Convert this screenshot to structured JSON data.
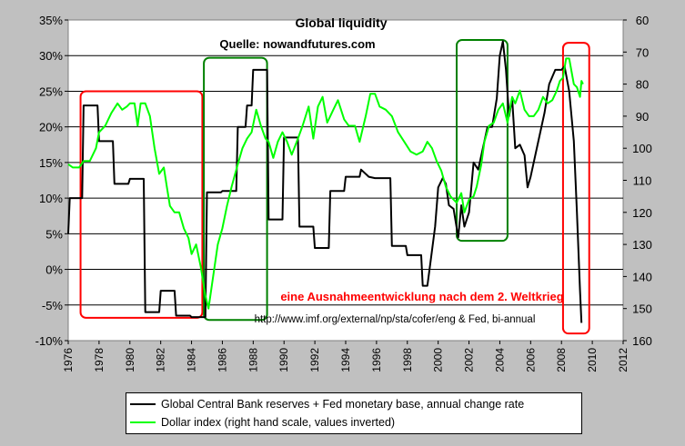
{
  "chart_data": {
    "type": "line",
    "title": "Global liquidity",
    "source": "Quelle: nowandfutures.com",
    "annotation": "eine Ausnahmeentwicklung nach dem 2. Weltkrieg",
    "url_note": "http://www.imf.org/external/np/sta/cofer/eng & Fed, bi-annual",
    "x_ticks": [
      "1976",
      "1978",
      "1980",
      "1982",
      "1984",
      "1986",
      "1988",
      "1990",
      "1992",
      "1994",
      "1996",
      "1998",
      "2000",
      "2002",
      "2004",
      "2006",
      "2008",
      "2010",
      "2012"
    ],
    "xlim": [
      1976,
      2012
    ],
    "left_axis": {
      "ticks": [
        "35%",
        "30%",
        "25%",
        "20%",
        "15%",
        "10%",
        "5%",
        "0%",
        "-5%",
        "-10%"
      ],
      "ylim": [
        -10,
        35
      ]
    },
    "right_axis": {
      "ticks": [
        "60",
        "70",
        "80",
        "90",
        "100",
        "110",
        "120",
        "130",
        "140",
        "150",
        "160"
      ],
      "ylim": [
        60,
        160
      ],
      "inverted": true
    },
    "series": [
      {
        "name": "Global Central Bank reserves + Fed monetary base, annual change rate",
        "color": "#000000",
        "axis": "left",
        "points": [
          [
            1976,
            5
          ],
          [
            1976.1,
            10
          ],
          [
            1976.9,
            10
          ],
          [
            1977,
            23
          ],
          [
            1977.9,
            23
          ],
          [
            1978,
            18
          ],
          [
            1978.9,
            18
          ],
          [
            1979,
            12
          ],
          [
            1979.9,
            12
          ],
          [
            1980,
            12.7
          ],
          [
            1980.9,
            12.7
          ],
          [
            1981,
            -6
          ],
          [
            1981.9,
            -6
          ],
          [
            1982,
            -3
          ],
          [
            1982.9,
            -3
          ],
          [
            1983,
            -6.5
          ],
          [
            1983.9,
            -6.5
          ],
          [
            1984,
            -6.7
          ],
          [
            1984.9,
            -6.7
          ],
          [
            1985,
            10.8
          ],
          [
            1985.9,
            10.8
          ],
          [
            1986,
            11
          ],
          [
            1986.9,
            11
          ],
          [
            1987,
            20
          ],
          [
            1987.5,
            20
          ],
          [
            1987.6,
            23
          ],
          [
            1987.9,
            23
          ],
          [
            1988,
            28
          ],
          [
            1988.9,
            28
          ],
          [
            1989,
            7
          ],
          [
            1989.9,
            7
          ],
          [
            1990,
            18.5
          ],
          [
            1990.9,
            18.5
          ],
          [
            1991,
            6
          ],
          [
            1991.9,
            6
          ],
          [
            1992,
            3
          ],
          [
            1992.9,
            3
          ],
          [
            1993,
            11
          ],
          [
            1993.9,
            11
          ],
          [
            1994,
            13
          ],
          [
            1994.9,
            13
          ],
          [
            1995,
            14
          ],
          [
            1995.5,
            13
          ],
          [
            1995.9,
            12.8
          ],
          [
            1996.9,
            12.8
          ],
          [
            1997,
            3.3
          ],
          [
            1997.9,
            3.3
          ],
          [
            1998,
            2
          ],
          [
            1998.9,
            2
          ],
          [
            1999,
            -2.3
          ],
          [
            1999.3,
            -2.3
          ],
          [
            1999.5,
            1
          ],
          [
            1999.8,
            6
          ],
          [
            2000,
            11.5
          ],
          [
            2000.3,
            12.8
          ],
          [
            2000.5,
            12
          ],
          [
            2000.7,
            9
          ],
          [
            2001,
            8.5
          ],
          [
            2001.3,
            4.5
          ],
          [
            2001.5,
            9
          ],
          [
            2001.7,
            6
          ],
          [
            2002,
            8
          ],
          [
            2002.3,
            15
          ],
          [
            2002.6,
            14
          ],
          [
            2002.9,
            17
          ],
          [
            2003.2,
            20
          ],
          [
            2003.5,
            20
          ],
          [
            2003.8,
            24
          ],
          [
            2004,
            30
          ],
          [
            2004.2,
            32
          ],
          [
            2004.4,
            28
          ],
          [
            2004.6,
            21.5
          ],
          [
            2004.8,
            24
          ],
          [
            2005,
            17
          ],
          [
            2005.3,
            17.5
          ],
          [
            2005.6,
            16
          ],
          [
            2005.8,
            11.5
          ],
          [
            2006,
            13
          ],
          [
            2006.3,
            16
          ],
          [
            2006.6,
            19
          ],
          [
            2006.9,
            22
          ],
          [
            2007.2,
            26
          ],
          [
            2007.6,
            28
          ],
          [
            2008,
            28
          ],
          [
            2008.2,
            28.5
          ],
          [
            2008.5,
            25
          ],
          [
            2008.8,
            18
          ],
          [
            2009,
            8
          ],
          [
            2009.2,
            -3
          ],
          [
            2009.3,
            -7.5
          ]
        ]
      },
      {
        "name": "Dollar index (right hand scale, values inverted)",
        "color": "#00ff00",
        "axis": "right",
        "points": [
          [
            1976,
            105
          ],
          [
            1976.3,
            106
          ],
          [
            1976.7,
            106
          ],
          [
            1977,
            104
          ],
          [
            1977.4,
            104
          ],
          [
            1977.8,
            100
          ],
          [
            1978,
            95
          ],
          [
            1978.4,
            93
          ],
          [
            1978.8,
            89
          ],
          [
            1979.2,
            86
          ],
          [
            1979.5,
            88
          ],
          [
            1979.8,
            87
          ],
          [
            1980,
            86
          ],
          [
            1980.3,
            86
          ],
          [
            1980.5,
            93
          ],
          [
            1980.7,
            86
          ],
          [
            1981,
            86
          ],
          [
            1981.3,
            90
          ],
          [
            1981.6,
            100
          ],
          [
            1981.9,
            108
          ],
          [
            1982.2,
            106
          ],
          [
            1982.4,
            112
          ],
          [
            1982.6,
            118
          ],
          [
            1982.9,
            120
          ],
          [
            1983.2,
            120
          ],
          [
            1983.5,
            125
          ],
          [
            1983.8,
            128
          ],
          [
            1984,
            133
          ],
          [
            1984.3,
            130
          ],
          [
            1984.6,
            137
          ],
          [
            1984.9,
            146
          ],
          [
            1985.1,
            150
          ],
          [
            1985.4,
            140
          ],
          [
            1985.7,
            130
          ],
          [
            1986,
            125
          ],
          [
            1986.3,
            118
          ],
          [
            1986.6,
            112
          ],
          [
            1987,
            105
          ],
          [
            1987.3,
            100
          ],
          [
            1987.6,
            97
          ],
          [
            1987.9,
            95
          ],
          [
            1988.2,
            88
          ],
          [
            1988.5,
            93
          ],
          [
            1988.8,
            97
          ],
          [
            1989,
            98
          ],
          [
            1989.3,
            103
          ],
          [
            1989.6,
            98
          ],
          [
            1989.9,
            95
          ],
          [
            1990.2,
            98
          ],
          [
            1990.5,
            102
          ],
          [
            1990.9,
            97
          ],
          [
            1991.2,
            93
          ],
          [
            1991.6,
            87
          ],
          [
            1991.9,
            97
          ],
          [
            1992.2,
            87
          ],
          [
            1992.5,
            84
          ],
          [
            1992.8,
            92
          ],
          [
            1993.2,
            88
          ],
          [
            1993.5,
            85
          ],
          [
            1993.9,
            91
          ],
          [
            1994.2,
            93
          ],
          [
            1994.6,
            93
          ],
          [
            1994.9,
            98
          ],
          [
            1995.3,
            90
          ],
          [
            1995.6,
            83
          ],
          [
            1995.9,
            83
          ],
          [
            1996.2,
            87
          ],
          [
            1996.6,
            88
          ],
          [
            1997,
            90
          ],
          [
            1997.4,
            95
          ],
          [
            1997.8,
            98
          ],
          [
            1998.2,
            101
          ],
          [
            1998.6,
            102
          ],
          [
            1999,
            101
          ],
          [
            1999.3,
            98
          ],
          [
            1999.6,
            100
          ],
          [
            1999.9,
            104
          ],
          [
            2000.2,
            107
          ],
          [
            2000.5,
            112
          ],
          [
            2000.8,
            115
          ],
          [
            2001,
            116
          ],
          [
            2001.2,
            117
          ],
          [
            2001.5,
            114
          ],
          [
            2001.7,
            120
          ],
          [
            2002,
            116
          ],
          [
            2002.3,
            115
          ],
          [
            2002.5,
            112
          ],
          [
            2002.8,
            105
          ],
          [
            2003,
            98
          ],
          [
            2003.3,
            93
          ],
          [
            2003.6,
            92
          ],
          [
            2003.9,
            88
          ],
          [
            2004.2,
            86
          ],
          [
            2004.5,
            92
          ],
          [
            2004.8,
            84
          ],
          [
            2005,
            86
          ],
          [
            2005.3,
            82
          ],
          [
            2005.6,
            88
          ],
          [
            2005.9,
            90
          ],
          [
            2006.2,
            90
          ],
          [
            2006.5,
            88
          ],
          [
            2006.8,
            84
          ],
          [
            2007.1,
            86
          ],
          [
            2007.4,
            85
          ],
          [
            2007.7,
            82
          ],
          [
            2007.9,
            79
          ],
          [
            2008.1,
            78
          ],
          [
            2008.3,
            72
          ],
          [
            2008.5,
            72
          ],
          [
            2008.8,
            80
          ],
          [
            2009,
            81
          ],
          [
            2009.2,
            84
          ],
          [
            2009.3,
            79
          ],
          [
            2009.4,
            80
          ]
        ]
      }
    ],
    "highlight_boxes": [
      {
        "color": "#ff0000",
        "x0": 1976.8,
        "x1": 1984.7,
        "y0": 25,
        "y1": -6.8
      },
      {
        "color": "#008000",
        "x0": 1984.8,
        "x1": 1988.9,
        "y0": 29.7,
        "y1": -7.1
      },
      {
        "color": "#008000",
        "x0": 2001.2,
        "x1": 2004.5,
        "y0": 32.2,
        "y1": 4
      },
      {
        "color": "#ff0000",
        "x0": 2008.1,
        "x1": 2009.8,
        "y0": 31.8,
        "y1": -9
      }
    ]
  },
  "legend": {
    "items": [
      {
        "label": "Global Central Bank reserves + Fed monetary base, annual change rate",
        "color": "#000000"
      },
      {
        "label": "Dollar index (right hand scale, values inverted)",
        "color": "#00ff00"
      }
    ]
  }
}
